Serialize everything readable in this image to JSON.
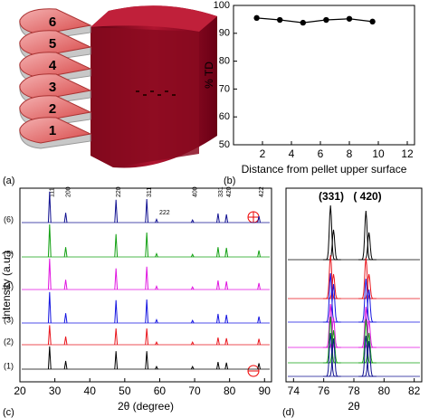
{
  "illustration": {
    "label": "(a)",
    "disc_labels": [
      "6",
      "5",
      "4",
      "3",
      "2",
      "1"
    ]
  },
  "chart_data": [
    {
      "type": "line",
      "panel_label": "(b)",
      "xlabel": "Distance from pellet upper surface",
      "ylabel": "% TD",
      "x": [
        1.6,
        3.2,
        4.8,
        6.4,
        8,
        9.6
      ],
      "series": [
        {
          "color": "#000000",
          "values": [
            95.5,
            94.8,
            93.8,
            94.8,
            95.2,
            94.2
          ]
        }
      ],
      "xlim": [
        0,
        12.5
      ],
      "ylim": [
        50,
        100
      ],
      "xticks": [
        2,
        4,
        6,
        8,
        10,
        12
      ],
      "yticks": [
        50,
        60,
        70,
        80,
        90,
        100
      ]
    },
    {
      "type": "spectrum",
      "panel_label": "(c)",
      "xlabel": "2θ (degree)",
      "ylabel": "Intensity (a.u.)",
      "x": [
        28.5,
        33.1,
        47.5,
        56.3,
        59.1,
        69.4,
        76.7,
        79.1,
        88.4
      ],
      "peak_labels": [
        "111",
        "200",
        "220",
        "311",
        "222",
        "400",
        "331",
        "420",
        "422"
      ],
      "series": [
        {
          "name": "(1)",
          "color": "#000000",
          "values": [
            70,
            25,
            55,
            55,
            8,
            8,
            22,
            20,
            18
          ]
        },
        {
          "name": "(2)",
          "color": "#e8141b",
          "values": [
            60,
            25,
            50,
            50,
            8,
            8,
            22,
            20,
            18
          ]
        },
        {
          "name": "(3)",
          "color": "#1414e0",
          "values": [
            95,
            30,
            70,
            72,
            10,
            8,
            28,
            25,
            20
          ]
        },
        {
          "name": "(4)",
          "color": "#e014e0",
          "values": [
            95,
            30,
            65,
            70,
            10,
            8,
            28,
            25,
            20
          ]
        },
        {
          "name": "(5)",
          "color": "#12a012",
          "values": [
            100,
            30,
            70,
            75,
            10,
            8,
            30,
            28,
            20
          ]
        },
        {
          "name": "(6)",
          "color": "#101090",
          "values": [
            95,
            30,
            70,
            72,
            10,
            8,
            28,
            25,
            20
          ]
        }
      ],
      "xlim": [
        20,
        92
      ],
      "xticks": [
        20,
        30,
        40,
        50,
        60,
        70,
        80,
        90
      ]
    },
    {
      "type": "spectrum-zoom",
      "panel_label": "(d)",
      "xlabel": "2θ",
      "x": [
        76.45,
        76.65,
        78.8,
        79.0
      ],
      "annotations": [
        {
          "text": "(331)",
          "x": 76.5
        },
        {
          "text": "( 420)",
          "x": 78.9
        }
      ],
      "series": [
        {
          "color": "#000000",
          "values": [
            100,
            55,
            90,
            50
          ]
        },
        {
          "color": "#e8141b",
          "values": [
            80,
            45,
            75,
            45
          ]
        },
        {
          "color": "#1414e0",
          "values": [
            90,
            70,
            80,
            60
          ]
        },
        {
          "color": "#e014e0",
          "values": [
            80,
            55,
            75,
            50
          ]
        },
        {
          "color": "#12a012",
          "values": [
            85,
            60,
            80,
            55
          ]
        },
        {
          "color": "#101090",
          "values": [
            80,
            70,
            75,
            65
          ]
        }
      ],
      "xlim": [
        73.5,
        82.5
      ],
      "xticks": [
        74,
        76,
        78,
        80,
        82
      ]
    }
  ]
}
